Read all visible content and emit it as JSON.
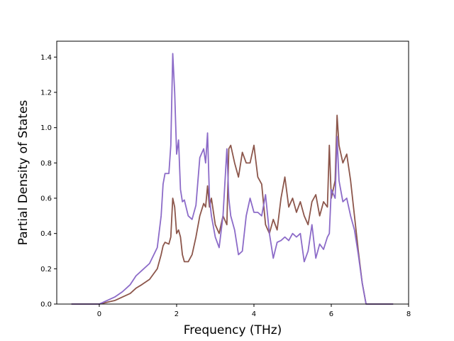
{
  "chart_data": {
    "type": "line",
    "xlabel": "Frequency (THz)",
    "ylabel": "Partial Density of States",
    "xlim": [
      -1.1,
      8.0
    ],
    "ylim": [
      0.0,
      1.49
    ],
    "xticks": [
      0,
      2,
      4,
      6,
      8
    ],
    "xtick_labels": [
      "0",
      "2",
      "4",
      "6",
      "8"
    ],
    "yticks": [
      0.0,
      0.2,
      0.4,
      0.6,
      0.8,
      1.0,
      1.2,
      1.4
    ],
    "ytick_labels": [
      "0.0",
      "0.2",
      "0.4",
      "0.6",
      "0.8",
      "1.0",
      "1.2",
      "1.4"
    ],
    "grid": false,
    "series": [
      {
        "color": "#8c564b",
        "x": [
          -0.72,
          0.0,
          0.2,
          0.4,
          0.6,
          0.8,
          0.95,
          1.1,
          1.3,
          1.5,
          1.6,
          1.65,
          1.7,
          1.8,
          1.85,
          1.9,
          1.95,
          2.0,
          2.05,
          2.1,
          2.15,
          2.2,
          2.3,
          2.4,
          2.5,
          2.6,
          2.7,
          2.75,
          2.8,
          2.85,
          2.9,
          3.0,
          3.1,
          3.2,
          3.3,
          3.35,
          3.4,
          3.5,
          3.6,
          3.7,
          3.8,
          3.9,
          4.0,
          4.1,
          4.2,
          4.3,
          4.4,
          4.5,
          4.6,
          4.7,
          4.8,
          4.9,
          5.0,
          5.1,
          5.2,
          5.3,
          5.4,
          5.5,
          5.6,
          5.7,
          5.8,
          5.9,
          5.95,
          6.0,
          6.1,
          6.15,
          6.2,
          6.3,
          6.4,
          6.5,
          6.6,
          6.7,
          6.8,
          6.9,
          7.0,
          7.6
        ],
        "y": [
          0.0,
          0.0,
          0.01,
          0.02,
          0.04,
          0.06,
          0.09,
          0.11,
          0.14,
          0.2,
          0.28,
          0.33,
          0.35,
          0.34,
          0.38,
          0.6,
          0.55,
          0.4,
          0.42,
          0.38,
          0.28,
          0.24,
          0.24,
          0.28,
          0.38,
          0.5,
          0.57,
          0.55,
          0.67,
          0.55,
          0.6,
          0.45,
          0.4,
          0.5,
          0.45,
          0.88,
          0.9,
          0.8,
          0.72,
          0.86,
          0.8,
          0.8,
          0.9,
          0.72,
          0.68,
          0.45,
          0.4,
          0.48,
          0.42,
          0.6,
          0.72,
          0.55,
          0.6,
          0.52,
          0.58,
          0.5,
          0.45,
          0.58,
          0.62,
          0.5,
          0.58,
          0.55,
          0.9,
          0.6,
          0.7,
          1.07,
          0.9,
          0.8,
          0.85,
          0.7,
          0.5,
          0.3,
          0.12,
          0.0,
          0.0,
          0.0
        ]
      },
      {
        "color": "#8c6bc8",
        "x": [
          -0.72,
          0.0,
          0.2,
          0.4,
          0.6,
          0.8,
          0.95,
          1.1,
          1.3,
          1.5,
          1.6,
          1.65,
          1.7,
          1.8,
          1.85,
          1.9,
          1.95,
          2.0,
          2.05,
          2.1,
          2.15,
          2.2,
          2.3,
          2.4,
          2.5,
          2.6,
          2.7,
          2.75,
          2.8,
          2.85,
          2.9,
          3.0,
          3.1,
          3.2,
          3.3,
          3.35,
          3.4,
          3.5,
          3.6,
          3.7,
          3.8,
          3.9,
          4.0,
          4.1,
          4.2,
          4.3,
          4.4,
          4.5,
          4.6,
          4.7,
          4.8,
          4.9,
          5.0,
          5.1,
          5.2,
          5.3,
          5.4,
          5.5,
          5.6,
          5.7,
          5.8,
          5.9,
          5.95,
          6.0,
          6.1,
          6.15,
          6.2,
          6.3,
          6.4,
          6.5,
          6.6,
          6.7,
          6.8,
          6.9,
          7.0,
          7.6
        ],
        "y": [
          0.0,
          0.0,
          0.02,
          0.04,
          0.07,
          0.11,
          0.16,
          0.19,
          0.23,
          0.32,
          0.5,
          0.68,
          0.74,
          0.74,
          0.9,
          1.42,
          1.2,
          0.85,
          0.93,
          0.65,
          0.58,
          0.59,
          0.5,
          0.48,
          0.56,
          0.83,
          0.88,
          0.8,
          0.97,
          0.6,
          0.5,
          0.38,
          0.32,
          0.5,
          0.88,
          0.6,
          0.5,
          0.42,
          0.28,
          0.3,
          0.5,
          0.6,
          0.52,
          0.52,
          0.5,
          0.62,
          0.4,
          0.26,
          0.35,
          0.36,
          0.38,
          0.36,
          0.4,
          0.38,
          0.4,
          0.24,
          0.3,
          0.45,
          0.26,
          0.34,
          0.31,
          0.38,
          0.4,
          0.65,
          0.6,
          0.95,
          0.7,
          0.58,
          0.6,
          0.5,
          0.42,
          0.28,
          0.12,
          0.0,
          0.0,
          0.0
        ]
      }
    ]
  }
}
